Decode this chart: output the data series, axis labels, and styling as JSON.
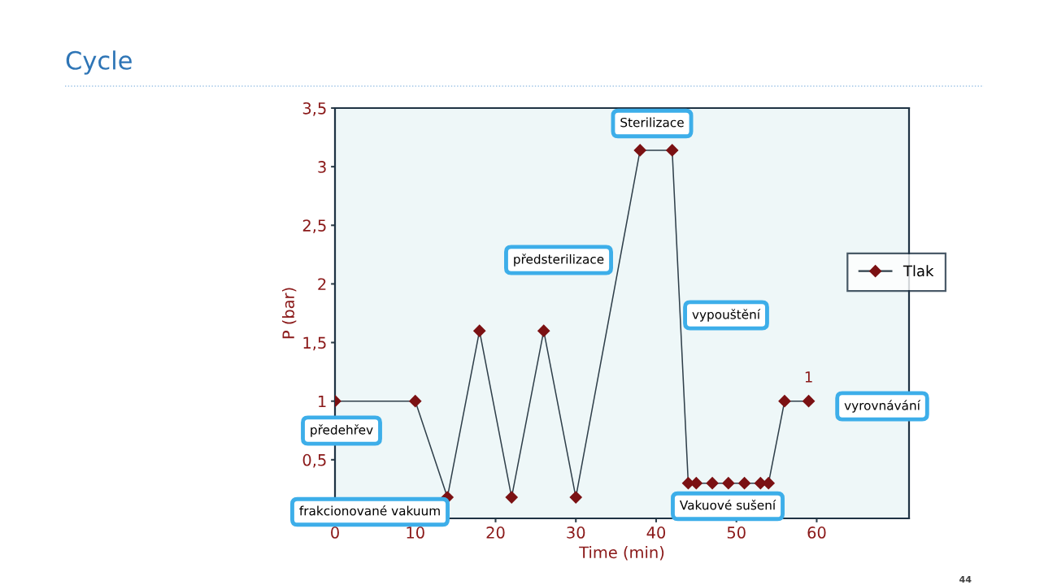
{
  "chart_data": {
    "type": "line",
    "title": "Cycle",
    "xlabel": "Time (min)",
    "ylabel": "P (bar)",
    "x": [
      0,
      10,
      14,
      18,
      22,
      26,
      30,
      38,
      42,
      44,
      45,
      47,
      49,
      51,
      53,
      54,
      56,
      59
    ],
    "series": [
      {
        "name": "Tlak",
        "color": "#7b1113",
        "values": [
          1,
          1,
          0.18,
          1.6,
          0.18,
          1.6,
          0.18,
          3.14,
          3.14,
          0.3,
          0.3,
          0.3,
          0.3,
          0.3,
          0.3,
          0.3,
          1,
          1
        ],
        "value_labels": [
          null,
          null,
          null,
          null,
          null,
          null,
          null,
          null,
          null,
          null,
          null,
          null,
          null,
          null,
          null,
          null,
          null,
          "1"
        ]
      }
    ],
    "xlim": [
      0,
      71.5
    ],
    "ylim": [
      0,
      3.5
    ],
    "xticks": [
      0,
      10,
      20,
      30,
      40,
      50,
      60
    ],
    "yticks": [
      {
        "value": 0.5,
        "label": "0,5"
      },
      1,
      {
        "value": 1.5,
        "label": "1,5"
      },
      2,
      {
        "value": 2.5,
        "label": "2,5"
      },
      3,
      {
        "value": 3.5,
        "label": "3,5"
      }
    ],
    "grid": false,
    "legend": "right",
    "marker": "diamond",
    "line_style": "solid",
    "annotations": [
      "Sterilizace",
      "předsterilizace",
      "vypouštění",
      "vyrovnávání",
      "předehřev",
      "frakcionované vakuum",
      "Vakuové sušení",
      "44"
    ]
  }
}
